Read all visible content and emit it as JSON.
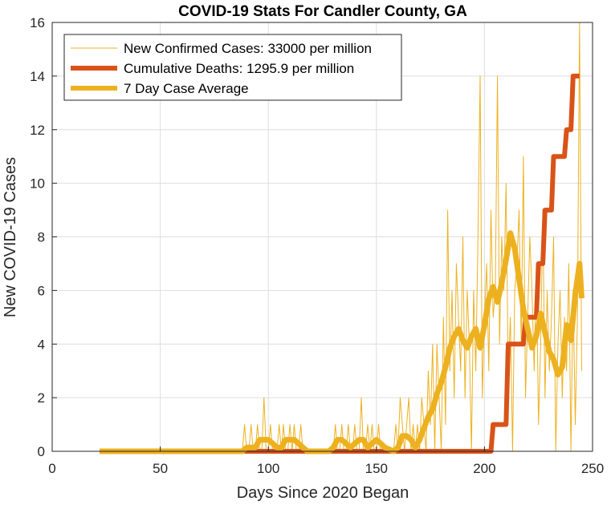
{
  "chart_data": {
    "type": "line",
    "title": "COVID-19 Stats For Candler County, GA",
    "xlabel": "Days Since 2020 Began",
    "ylabel": "New COVID-19 Cases",
    "xlim": [
      0,
      250
    ],
    "ylim": [
      0,
      16
    ],
    "xticks": [
      0,
      50,
      100,
      150,
      200,
      250
    ],
    "yticks": [
      0,
      2,
      4,
      6,
      8,
      10,
      12,
      14,
      16
    ],
    "grid": true,
    "legend": "top-left",
    "series": [
      {
        "name": "New Confirmed Cases: 33000 per million",
        "color": "#EDB120",
        "style": "thin",
        "x": [
          22,
          88,
          89,
          90,
          91,
          92,
          93,
          94,
          95,
          96,
          97,
          98,
          99,
          100,
          101,
          102,
          103,
          104,
          105,
          106,
          107,
          108,
          109,
          110,
          111,
          112,
          113,
          114,
          115,
          116,
          130,
          131,
          132,
          133,
          134,
          135,
          136,
          137,
          138,
          139,
          140,
          141,
          142,
          143,
          144,
          145,
          146,
          147,
          148,
          149,
          150,
          151,
          152,
          153,
          158,
          159,
          160,
          161,
          162,
          163,
          164,
          165,
          166,
          167,
          168,
          169,
          170,
          171,
          172,
          173,
          174,
          175,
          176,
          177,
          178,
          179,
          180,
          181,
          182,
          183,
          184,
          185,
          186,
          187,
          188,
          189,
          190,
          191,
          192,
          193,
          194,
          195,
          196,
          197,
          198,
          199,
          200,
          201,
          202,
          203,
          204,
          205,
          206,
          207,
          208,
          209,
          210,
          211,
          212,
          213,
          214,
          215,
          216,
          217,
          218,
          219,
          220,
          221,
          222,
          223,
          224,
          225,
          226,
          227,
          228,
          229,
          230,
          231,
          232,
          233,
          234,
          235,
          236,
          237,
          238,
          239,
          240,
          241,
          242,
          243,
          244,
          245
        ],
        "y": [
          0,
          0,
          1,
          0,
          0,
          1,
          0,
          0,
          1,
          0,
          0,
          2,
          0,
          0,
          1,
          0,
          0,
          0,
          1,
          0,
          1,
          0,
          0,
          1,
          0,
          1,
          0,
          0,
          1,
          0,
          0,
          1,
          0,
          0,
          1,
          0,
          0,
          1,
          0,
          0,
          1,
          0,
          0,
          2,
          0,
          0,
          1,
          0,
          1,
          0,
          0,
          1,
          0,
          0,
          0,
          1,
          0,
          2,
          1,
          0,
          1,
          2,
          0,
          1,
          0,
          1,
          0,
          2,
          1,
          0,
          3,
          1,
          4,
          0,
          4,
          2,
          0,
          5,
          1,
          9,
          3,
          6,
          2,
          7,
          5,
          3,
          8,
          2,
          6,
          4,
          0,
          6,
          3,
          8,
          14,
          2,
          5,
          7,
          3,
          9,
          5,
          6,
          14,
          4,
          8,
          6,
          10,
          3,
          5,
          0,
          6,
          7,
          9,
          4,
          11,
          2,
          5,
          8,
          6,
          3,
          7,
          1,
          4,
          9,
          2,
          6,
          3,
          5,
          8,
          0,
          4,
          6,
          2,
          5,
          3,
          7,
          0,
          6,
          1,
          5,
          16,
          3
        ]
      },
      {
        "name": "Cumulative Deaths: 1295.9 per million",
        "color": "#D95319",
        "style": "thick",
        "x": [
          22,
          203,
          204,
          210,
          211,
          218,
          219,
          224,
          225,
          227,
          228,
          231,
          232,
          237,
          238,
          240,
          241,
          244
        ],
        "y": [
          0,
          0,
          1,
          1,
          4,
          4,
          5,
          5,
          7,
          7,
          9,
          9,
          11,
          11,
          12,
          12,
          14,
          14
        ]
      },
      {
        "name": "7 Day Case Average",
        "color": "#EDB120",
        "style": "medium",
        "x": [
          22,
          88,
          90,
          92,
          94,
          96,
          98,
          100,
          102,
          104,
          106,
          108,
          110,
          112,
          114,
          116,
          118,
          128,
          130,
          132,
          134,
          136,
          138,
          140,
          142,
          144,
          146,
          148,
          150,
          152,
          154,
          158,
          160,
          162,
          164,
          166,
          168,
          170,
          172,
          174,
          176,
          178,
          180,
          182,
          184,
          186,
          188,
          190,
          192,
          194,
          196,
          198,
          200,
          202,
          204,
          206,
          208,
          210,
          212,
          214,
          216,
          218,
          220,
          222,
          224,
          226,
          228,
          230,
          232,
          234,
          236,
          238,
          240,
          242,
          244,
          245
        ],
        "y": [
          0,
          0,
          0.14,
          0.14,
          0.14,
          0.43,
          0.43,
          0.43,
          0.29,
          0.14,
          0.14,
          0.43,
          0.43,
          0.43,
          0.29,
          0.14,
          0,
          0,
          0.14,
          0.43,
          0.43,
          0.29,
          0.14,
          0.29,
          0.43,
          0.43,
          0.14,
          0.29,
          0.43,
          0.29,
          0.14,
          0,
          0.14,
          0.57,
          0.57,
          0.43,
          0.14,
          0.43,
          0.86,
          1.29,
          1.57,
          2.14,
          2.57,
          3.14,
          3.86,
          4.29,
          4.57,
          4.14,
          3.86,
          4.29,
          4.57,
          3.86,
          4.71,
          5.71,
          6.14,
          5.57,
          6.29,
          7.14,
          8.14,
          7.57,
          6.43,
          5.29,
          4.57,
          3.86,
          4.29,
          5.14,
          4.43,
          3.71,
          3.43,
          2.86,
          3.14,
          4.71,
          4.14,
          5.86,
          7.0,
          5.71
        ]
      }
    ]
  }
}
